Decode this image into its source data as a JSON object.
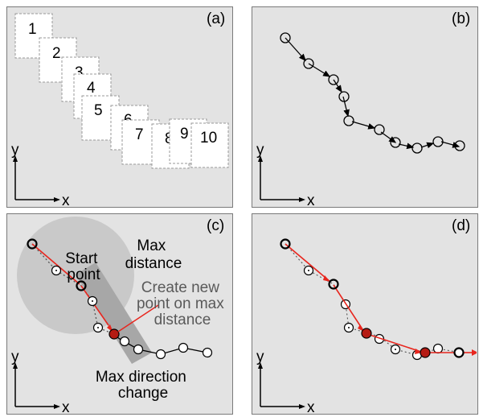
{
  "panels": {
    "a": {
      "label": "(a)",
      "frame_numbers": [
        "1",
        "2",
        "3",
        "4",
        "5",
        "6",
        "7",
        "8",
        "9",
        "10"
      ],
      "axis_x": "x",
      "axis_y": "y"
    },
    "b": {
      "label": "(b)",
      "axis_x": "x",
      "axis_y": "y"
    },
    "c": {
      "label": "(c)",
      "axis_x": "x",
      "axis_y": "y",
      "start_point_label": [
        "Start",
        "point"
      ],
      "max_distance_label": [
        "Max",
        "distance"
      ],
      "new_point_label": [
        "Create new",
        "point on max",
        "distance"
      ],
      "max_direction_label": [
        "Max direction",
        "change"
      ]
    },
    "d": {
      "label": "(d)",
      "axis_x": "x",
      "axis_y": "y"
    }
  },
  "colors": {
    "panel_bg": "#e3e3e3",
    "panel_border": "#7a7a7a",
    "path": "#000000",
    "simplified_path": "#e8261e",
    "new_point_fill": "#b51b14",
    "max_distance_circle": "#c9c9c9",
    "direction_band": "#a7a7a7",
    "annotation_gray": "#5a5a5a"
  }
}
